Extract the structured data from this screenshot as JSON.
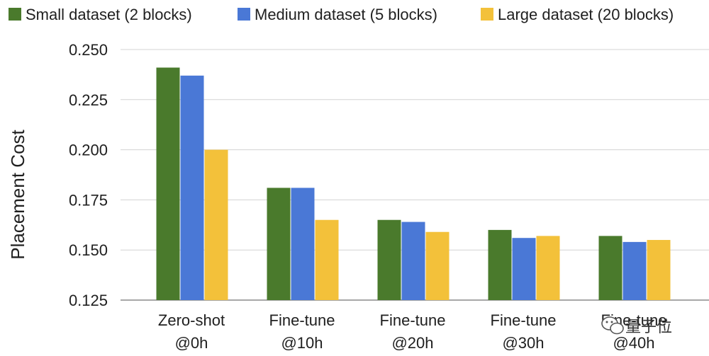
{
  "chart_data": {
    "type": "bar",
    "title": "",
    "xlabel": "",
    "ylabel": "Placement Cost",
    "ylim": [
      0.125,
      0.25
    ],
    "yticks": [
      "0.250",
      "0.225",
      "0.200",
      "0.175",
      "0.150",
      "0.125"
    ],
    "grid": true,
    "legend_position": "top",
    "categories": [
      [
        "Zero-shot",
        "@0h"
      ],
      [
        "Fine-tune",
        "@10h"
      ],
      [
        "Fine-tune",
        "@20h"
      ],
      [
        "Fine-tune",
        "@30h"
      ],
      [
        "Fine-tune",
        "@40h"
      ]
    ],
    "series": [
      {
        "name": "Small dataset (2 blocks)",
        "color": "#4a7a2c",
        "values": [
          0.241,
          0.181,
          0.165,
          0.16,
          0.157
        ]
      },
      {
        "name": "Medium dataset (5 blocks)",
        "color": "#4a78d6",
        "values": [
          0.237,
          0.181,
          0.164,
          0.156,
          0.154
        ]
      },
      {
        "name": "Large dataset (20 blocks)",
        "color": "#f3c13a",
        "values": [
          0.2,
          0.165,
          0.159,
          0.157,
          0.155
        ]
      }
    ]
  },
  "watermark": {
    "text": "量子位",
    "icon": "wechat-icon"
  }
}
